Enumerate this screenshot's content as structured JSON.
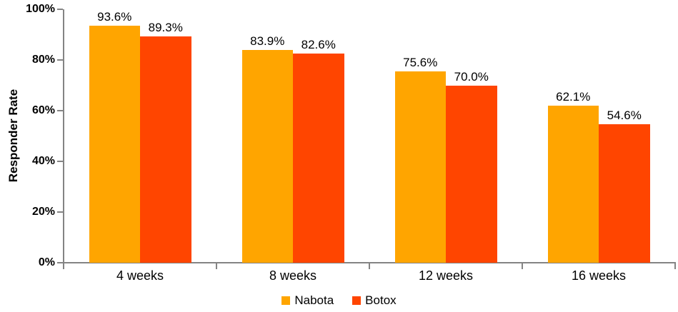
{
  "chart_data": {
    "type": "bar",
    "title": "",
    "xlabel": "",
    "ylabel": "Responder Rate",
    "categories": [
      "4 weeks",
      "8 weeks",
      "12 weeks",
      "16 weeks"
    ],
    "series": [
      {
        "name": "Nabota",
        "color": "#FFA500",
        "values": [
          93.6,
          83.9,
          75.6,
          62.1
        ],
        "labels": [
          "93.6%",
          "83.9%",
          "75.6%",
          "62.1%"
        ]
      },
      {
        "name": "Botox",
        "color": "#FF4500",
        "values": [
          89.3,
          82.6,
          70.0,
          54.6
        ],
        "labels": [
          "89.3%",
          "82.6%",
          "70.0%",
          "54.6%"
        ]
      }
    ],
    "ylim": [
      0,
      100
    ],
    "yticks": [
      {
        "value": 0,
        "label": "0%"
      },
      {
        "value": 20,
        "label": "20%"
      },
      {
        "value": 40,
        "label": "40%"
      },
      {
        "value": 60,
        "label": "60%"
      },
      {
        "value": 80,
        "label": "80%"
      },
      {
        "value": 100,
        "label": "100%"
      }
    ],
    "grid": false,
    "legend_position": "bottom-center",
    "axis_color": "#848484",
    "text_color": "#000000",
    "background_color": "#FFFFFF"
  }
}
